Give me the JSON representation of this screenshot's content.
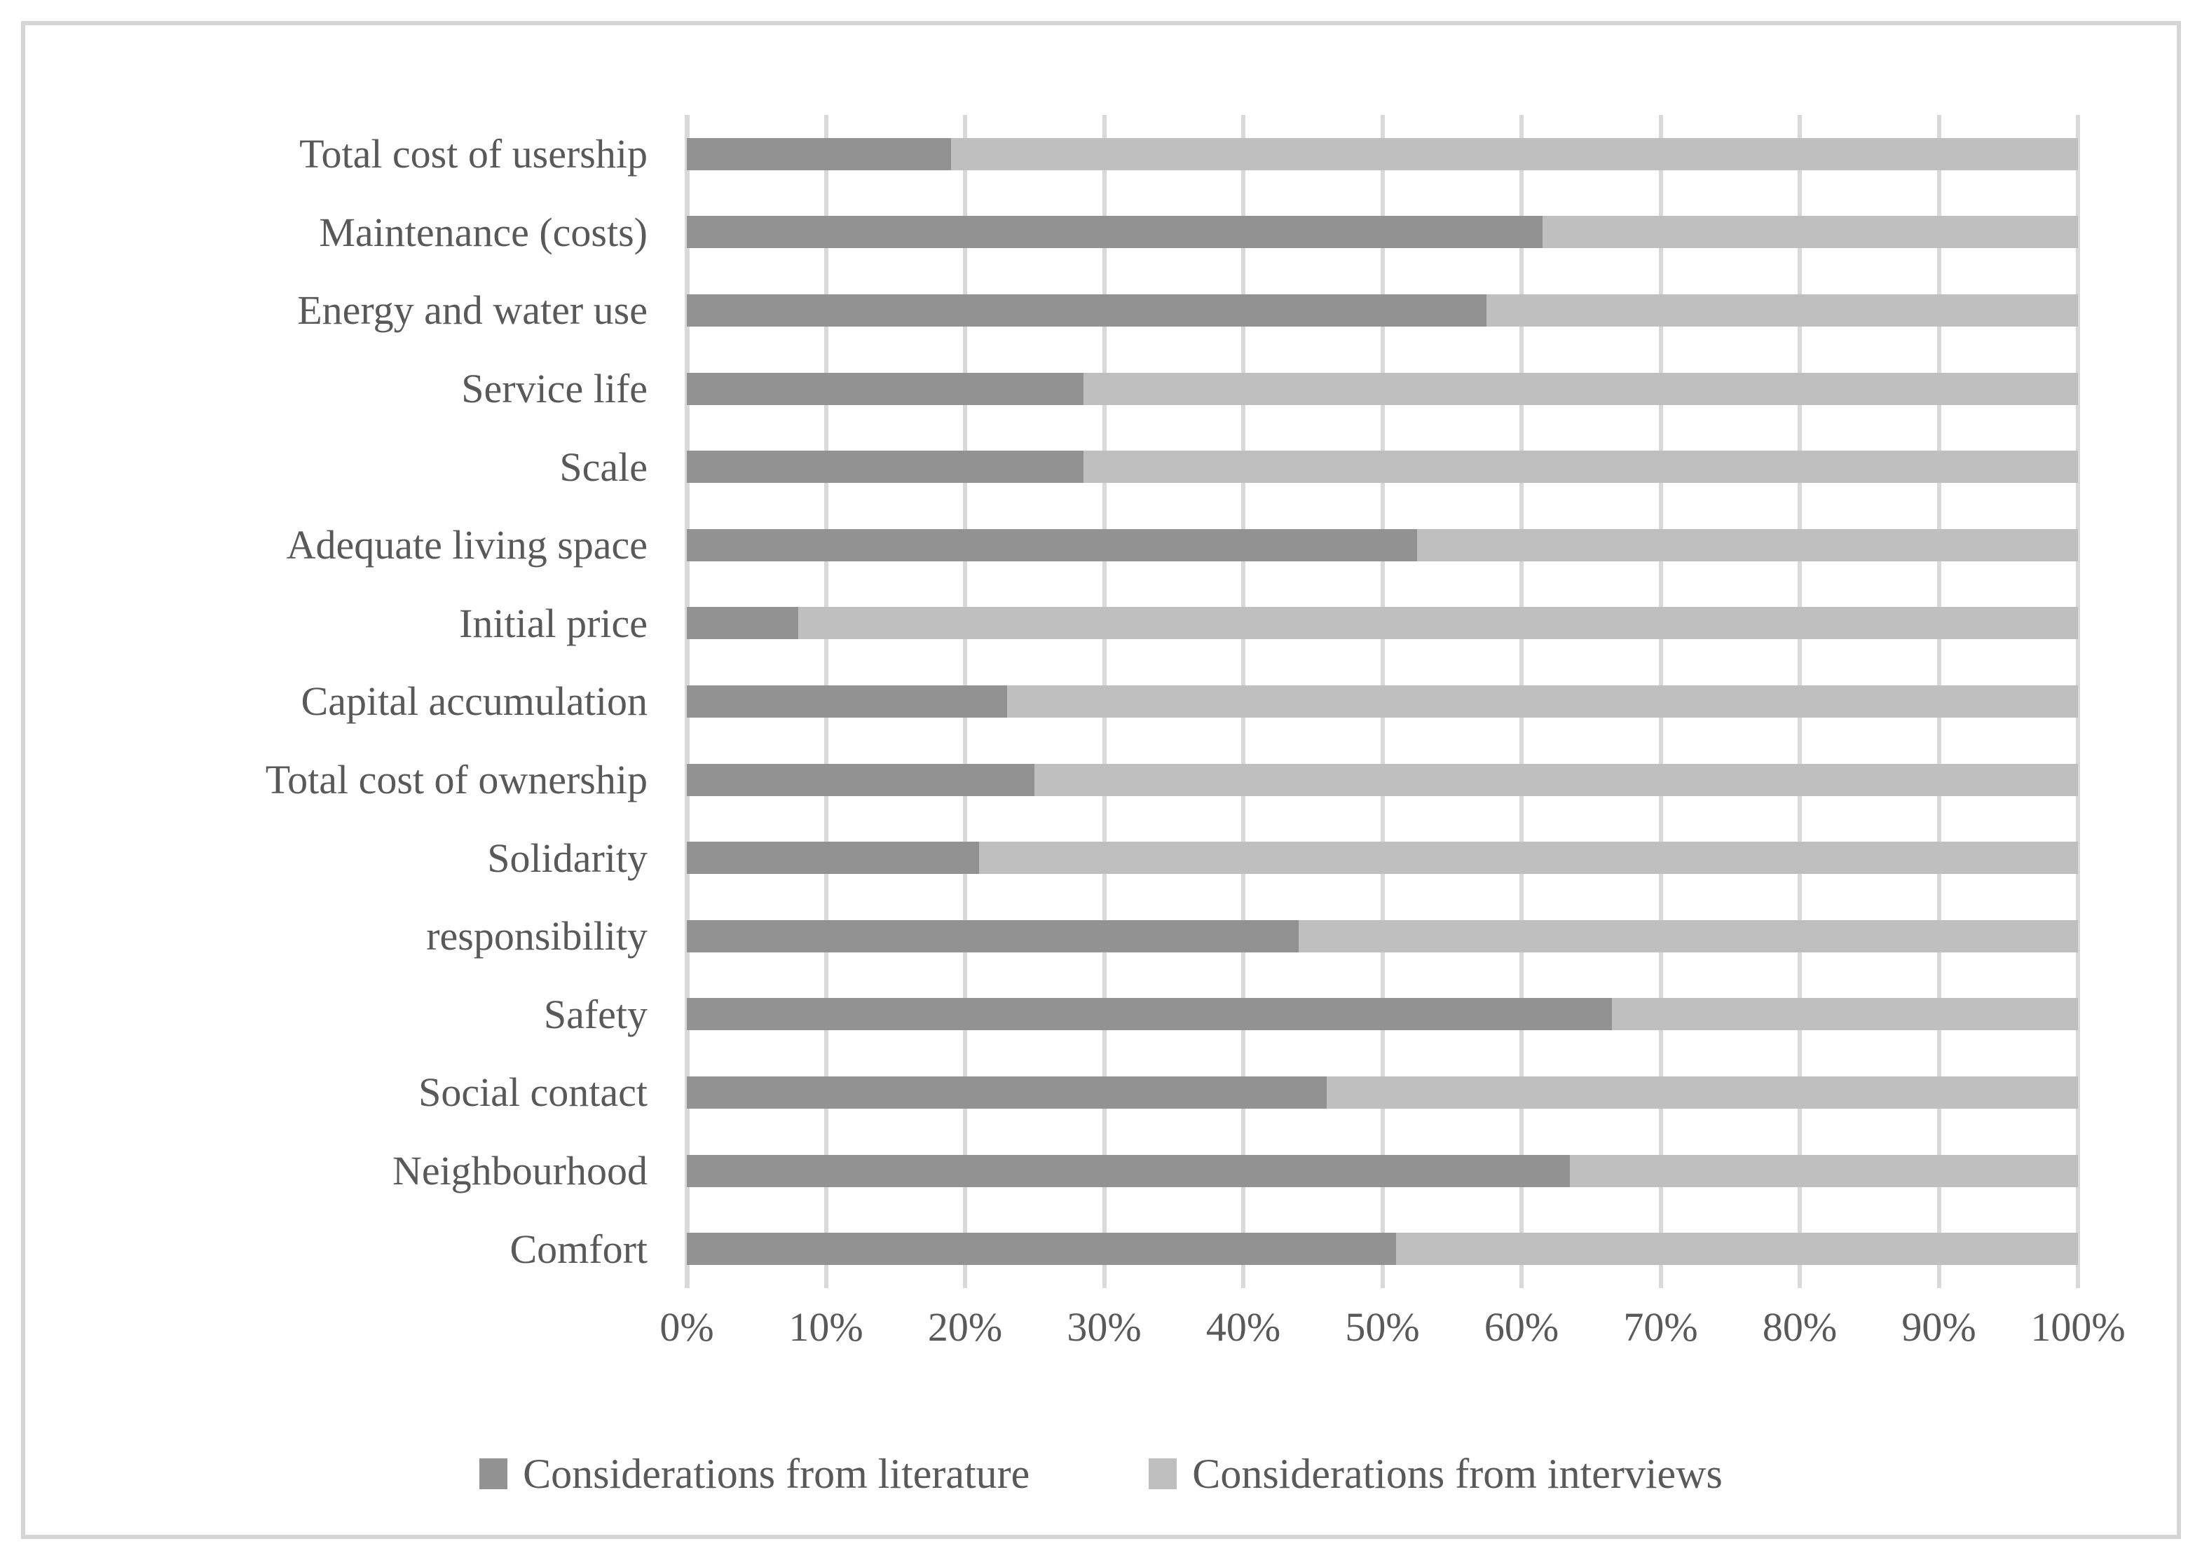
{
  "chart_data": {
    "type": "bar",
    "orientation": "horizontal",
    "stacked": true,
    "unit": "percent",
    "title": "",
    "xlabel": "",
    "ylabel": "",
    "xlim": [
      0,
      100
    ],
    "grid": true,
    "legend_position": "bottom",
    "categories": [
      "Total cost of usership",
      "Maintenance (costs)",
      "Energy and water use",
      "Service life",
      "Scale",
      "Adequate living space",
      "Initial price",
      "Capital accumulation",
      "Total cost of ownership",
      "Solidarity",
      "responsibility",
      "Safety",
      "Social contact",
      "Neighbourhood",
      "Comfort"
    ],
    "series": [
      {
        "name": "Considerations from literature",
        "color": "#929292",
        "values": [
          19,
          61.5,
          57.5,
          28.5,
          28.5,
          52.5,
          8,
          23,
          25,
          21,
          44,
          66.5,
          46,
          63.5,
          51
        ]
      },
      {
        "name": "Considerations from interviews",
        "color": "#bfbfbf",
        "values": [
          81,
          38.5,
          42.5,
          71.5,
          71.5,
          47.5,
          92,
          77,
          75,
          79,
          56,
          33.5,
          54,
          36.5,
          49
        ]
      }
    ],
    "x_ticks": [
      "0%",
      "10%",
      "20%",
      "30%",
      "40%",
      "50%",
      "60%",
      "70%",
      "80%",
      "90%",
      "100%"
    ]
  },
  "styles": {
    "text_color": "#595959",
    "gridline_color": "#d9d9d9",
    "figure_border_color": "#d6d6d6",
    "background": "#ffffff"
  }
}
